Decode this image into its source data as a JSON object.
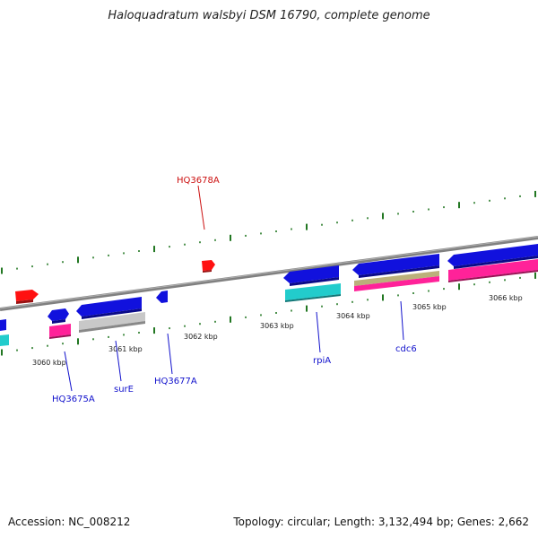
{
  "header": {
    "title": "Haloquadratum walsbyi DSM 16790, complete genome"
  },
  "footer": {
    "accession": "Accession: NC_008212",
    "topology": "Topology: circular; Length: 3,132,494 bp; Genes: 2,662"
  },
  "colors": {
    "backbone": "#888888",
    "forward_gene": "#1111dd",
    "reverse_gene": "#ff1111",
    "label_blue": "#1111cc",
    "label_red": "#cc1111",
    "tick_green": "#227722",
    "cyan": "#22cccc",
    "magenta": "#ff2299",
    "gray": "#c8c8c8",
    "khaki": "#bbb07a"
  },
  "kbp_labels": [
    "3060 kbp",
    "3061 kbp",
    "3062 kbp",
    "3063 kbp",
    "3064 kbp",
    "3065 kbp",
    "3066 kbp"
  ],
  "gene_labels": {
    "hq3678a": "HQ3678A",
    "hq3675a": "HQ3675A",
    "sure": "surE",
    "hq3677a": "HQ3677A",
    "rpia": "rpiA",
    "cdc6": "cdc6"
  }
}
